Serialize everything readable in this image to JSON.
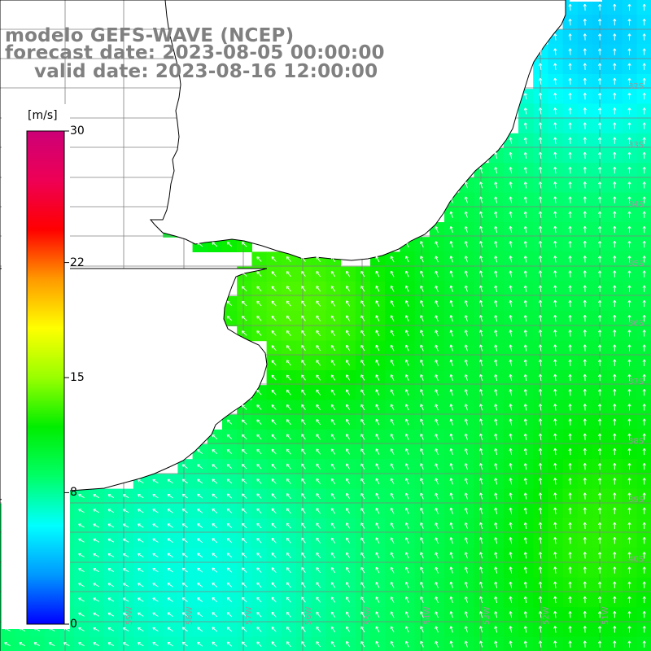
{
  "titles": {
    "line1": "modelo GEFS-WAVE (NCEP)",
    "line2": "forecast date: 2023-08-05 00:00:00",
    "line3": "valid date: 2023-08-16 12:00:00"
  },
  "colorbar": {
    "unit": "[m/s]",
    "ticks": [
      "30",
      "22",
      "15",
      "8",
      "0"
    ],
    "tick_values": [
      30,
      22,
      15,
      8,
      0
    ],
    "range": [
      0,
      30
    ],
    "stops": [
      "#0000ff",
      "#0099ff",
      "#00ffff",
      "#00ff66",
      "#00ee00",
      "#99ff00",
      "#ffff00",
      "#ff9900",
      "#ff0000",
      "#ee0055",
      "#cc0077"
    ]
  },
  "map": {
    "ocean_fill": "#ffffff",
    "land_outline_color": "#000000",
    "grid_color": "#808080",
    "arrow_color": "#ffffff",
    "lat_labels": [
      "32S",
      "33S",
      "34S",
      "35S",
      "36S",
      "37S",
      "38S",
      "39S",
      "40S"
    ],
    "lon_labels": [
      "59W",
      "58W",
      "57W",
      "56W",
      "55W",
      "54W",
      "53W",
      "52W",
      "51W"
    ]
  }
}
